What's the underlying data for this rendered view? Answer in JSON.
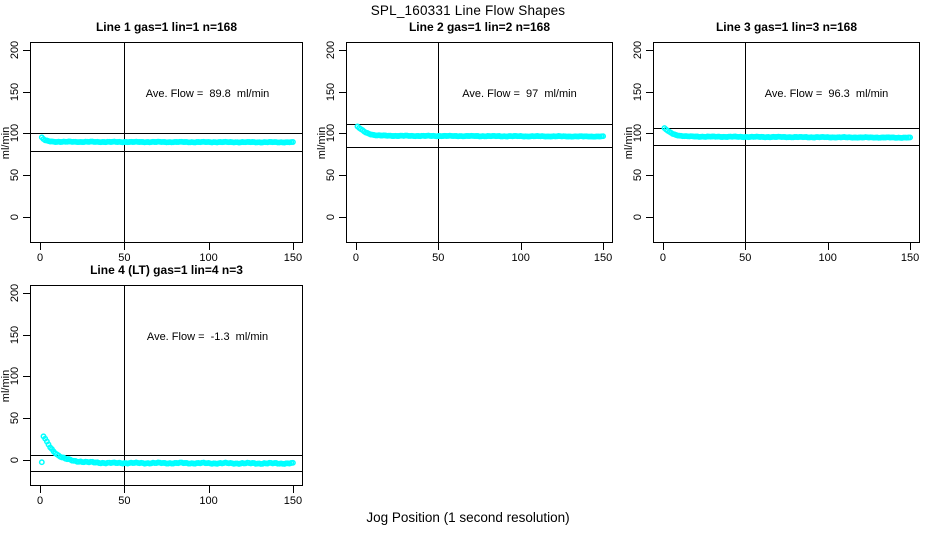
{
  "figure": {
    "title": "SPL_160331  Line Flow Shapes",
    "x_axis_title": "Jog Position (1 second resolution)"
  },
  "colors": {
    "data_marker": "#00ffff",
    "axis": "#000000",
    "background": "#ffffff"
  },
  "chart_data": [
    {
      "type": "scatter",
      "title": "Line 1 gas=1 lin=1 n=168",
      "annotation": "Ave. Flow =  89.8  ml/min",
      "ave_flow_ml_min": 89.8,
      "gas": 1,
      "lin": 1,
      "n": 168,
      "ylabel": "ml/min",
      "xlim": [
        0,
        150
      ],
      "ylim": [
        0,
        200
      ],
      "x_ticks": [
        0,
        50,
        100,
        150
      ],
      "y_ticks": [
        0,
        50,
        100,
        150,
        200
      ],
      "vline_x": 50,
      "hlines": [
        100,
        79
      ],
      "marker": "open-circle",
      "profile_points": [
        [
          1,
          95
        ],
        [
          2,
          93
        ],
        [
          3,
          91.5
        ],
        [
          5,
          90.5
        ],
        [
          8,
          90
        ],
        [
          15,
          89.8
        ],
        [
          60,
          89.6
        ],
        [
          150,
          89.3
        ]
      ]
    },
    {
      "type": "scatter",
      "title": "Line 2 gas=1 lin=2 n=168",
      "annotation": "Ave. Flow =  97  ml/min",
      "ave_flow_ml_min": 97,
      "gas": 1,
      "lin": 2,
      "n": 168,
      "ylabel": "ml/min",
      "xlim": [
        0,
        150
      ],
      "ylim": [
        0,
        200
      ],
      "x_ticks": [
        0,
        50,
        100,
        150
      ],
      "y_ticks": [
        0,
        50,
        100,
        150,
        200
      ],
      "vline_x": 50,
      "hlines": [
        111,
        84
      ],
      "marker": "open-circle",
      "profile_points": [
        [
          1,
          108
        ],
        [
          2,
          106.5
        ],
        [
          3,
          105
        ],
        [
          4,
          103.5
        ],
        [
          6,
          101
        ],
        [
          8,
          99.5
        ],
        [
          11,
          98
        ],
        [
          15,
          97.3
        ],
        [
          25,
          97
        ],
        [
          150,
          96.2
        ]
      ]
    },
    {
      "type": "scatter",
      "title": "Line 3 gas=1 lin=3 n=168",
      "annotation": "Ave. Flow =  96.3  ml/min",
      "ave_flow_ml_min": 96.3,
      "gas": 1,
      "lin": 3,
      "n": 168,
      "ylabel": "ml/min",
      "xlim": [
        0,
        150
      ],
      "ylim": [
        0,
        200
      ],
      "x_ticks": [
        0,
        50,
        100,
        150
      ],
      "y_ticks": [
        0,
        50,
        100,
        150,
        200
      ],
      "vline_x": 50,
      "hlines": [
        107,
        86
      ],
      "marker": "open-circle",
      "profile_points": [
        [
          1,
          106
        ],
        [
          2,
          104.5
        ],
        [
          3,
          103
        ],
        [
          4,
          101.5
        ],
        [
          6,
          99.5
        ],
        [
          8,
          98
        ],
        [
          11,
          97
        ],
        [
          15,
          96.3
        ],
        [
          25,
          96
        ],
        [
          150,
          94.8
        ]
      ]
    },
    {
      "type": "scatter",
      "title": "Line 4 (LT) gas=1 lin=4 n=3",
      "annotation": "Ave. Flow =  -1.3  ml/min",
      "ave_flow_ml_min": -1.3,
      "gas": 1,
      "lin": 4,
      "n": 3,
      "ylabel": "ml/min",
      "xlim": [
        0,
        150
      ],
      "ylim": [
        0,
        200
      ],
      "x_ticks": [
        0,
        50,
        100,
        150
      ],
      "y_ticks": [
        0,
        50,
        100,
        150,
        200
      ],
      "vline_x": 50,
      "hlines": [
        6,
        -14
      ],
      "marker": "open-circle",
      "profile_points": [
        [
          1,
          -3
        ],
        [
          2,
          28
        ],
        [
          3,
          25
        ],
        [
          4,
          21
        ],
        [
          6,
          15
        ],
        [
          8,
          10
        ],
        [
          11,
          5
        ],
        [
          15,
          1
        ],
        [
          20,
          -1.5
        ],
        [
          28,
          -3
        ],
        [
          40,
          -4
        ],
        [
          150,
          -4.5
        ]
      ]
    }
  ]
}
